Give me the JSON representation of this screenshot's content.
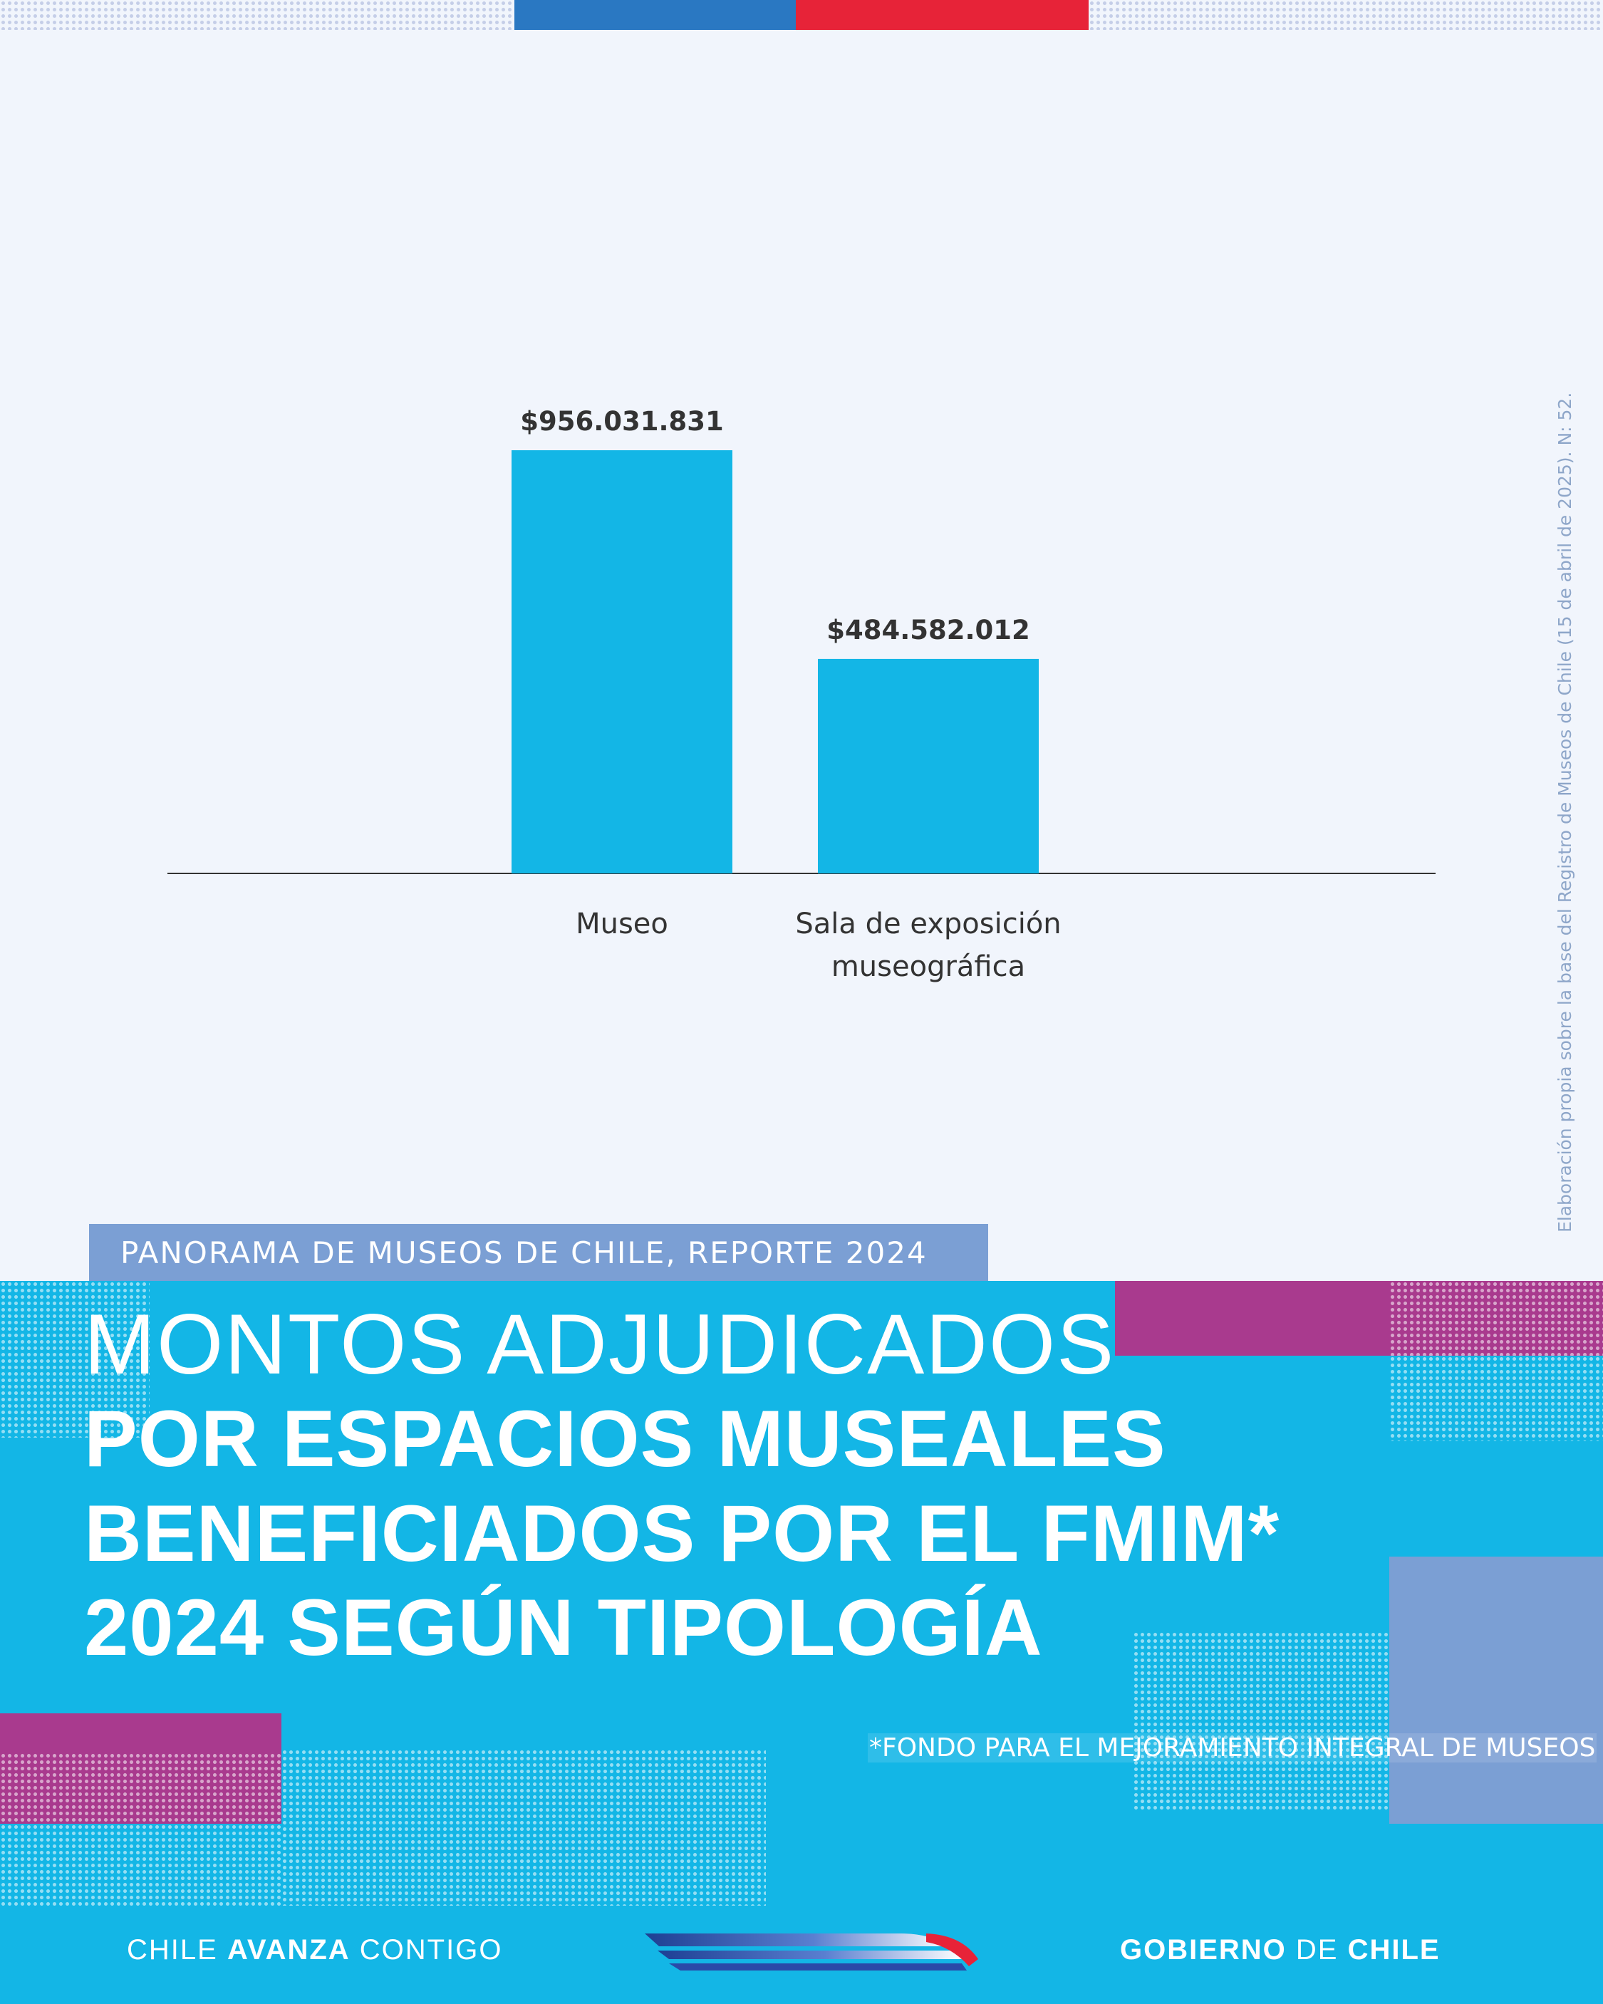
{
  "chart_data": {
    "type": "bar",
    "categories": [
      "Museo",
      "Sala de exposición museográfica"
    ],
    "category_lines": [
      [
        "Museo"
      ],
      [
        "Sala de exposición",
        "museográfica"
      ]
    ],
    "values": [
      956031831,
      484582012
    ],
    "value_labels": [
      "$956.031.831",
      "$484.582.012"
    ],
    "bar_color": "#13b6e6",
    "ylim": [
      0,
      1000000000
    ],
    "grid": false
  },
  "source_note": "Elaboración propia sobre la base del Registro de Museos de Chile (15 de abril de 2025). N: 52.",
  "report_tag": "PANORAMA DE MUSEOS DE CHILE, REPORTE 2024",
  "title": {
    "line1": "MONTOS ADJUDICADOS",
    "line2": "POR ESPACIOS MUSEALES",
    "line3": "BENEFICIADOS POR EL FMIM*",
    "line4": "2024 SEGÚN TIPOLOGÍA"
  },
  "footnote": "*FONDO PARA EL MEJORAMIENTO INTEGRAL DE MUSEOS",
  "footer": {
    "left_a": "CHILE ",
    "left_b": "AVANZA",
    "left_c": " CONTIGO",
    "right_a": "GOBIERNO",
    "right_b": " DE ",
    "right_c": "CHILE"
  },
  "colors": {
    "background": "#f1f5fc",
    "panel": "#13b6e6",
    "magenta": "#a93a8e",
    "lavender": "#7b9fd4",
    "flag_blue": "#2a78c2",
    "flag_red": "#e72338"
  },
  "icons": [
    "chile-logo-icon"
  ]
}
